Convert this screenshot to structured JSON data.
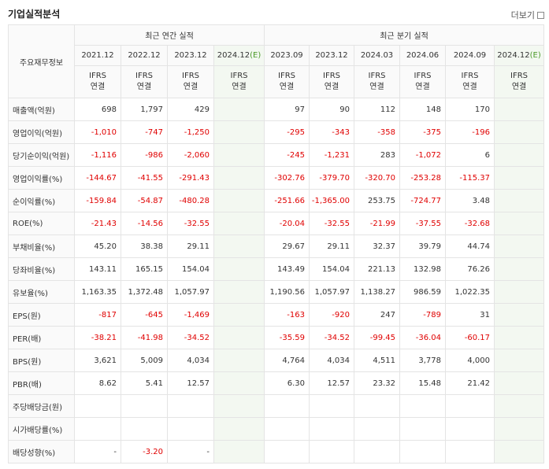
{
  "header": {
    "title": "기업실적분석",
    "more_label": "더보기"
  },
  "table": {
    "corner_label": "주요재무정보",
    "group_annual": "최근 연간 실적",
    "group_quarter": "최근 분기 실적",
    "periods": [
      "2021.12",
      "2022.12",
      "2023.12",
      "2024.12",
      "2023.09",
      "2023.12",
      "2024.03",
      "2024.06",
      "2024.09",
      "2024.12"
    ],
    "estimate_marker": "(E)",
    "ifrs_line1": "IFRS",
    "ifrs_line2": "연결",
    "rows": [
      {
        "label": "매출액(억원)",
        "values": [
          "698",
          "1,797",
          "429",
          "",
          "97",
          "90",
          "112",
          "148",
          "170",
          ""
        ]
      },
      {
        "label": "영업이익(억원)",
        "values": [
          "-1,010",
          "-747",
          "-1,250",
          "",
          "-295",
          "-343",
          "-358",
          "-375",
          "-196",
          ""
        ]
      },
      {
        "label": "당기순이익(억원)",
        "values": [
          "-1,116",
          "-986",
          "-2,060",
          "",
          "-245",
          "-1,231",
          "283",
          "-1,072",
          "6",
          ""
        ]
      },
      {
        "label": "영업이익률(%)",
        "values": [
          "-144.67",
          "-41.55",
          "-291.43",
          "",
          "-302.76",
          "-379.70",
          "-320.70",
          "-253.28",
          "-115.37",
          ""
        ]
      },
      {
        "label": "순이익률(%)",
        "values": [
          "-159.84",
          "-54.87",
          "-480.28",
          "",
          "-251.66",
          "-1,365.00",
          "253.75",
          "-724.77",
          "3.48",
          ""
        ]
      },
      {
        "label": "ROE(%)",
        "values": [
          "-21.43",
          "-14.56",
          "-32.55",
          "",
          "-20.04",
          "-32.55",
          "-21.99",
          "-37.55",
          "-32.68",
          ""
        ]
      },
      {
        "label": "부채비율(%)",
        "values": [
          "45.20",
          "38.38",
          "29.11",
          "",
          "29.67",
          "29.11",
          "32.37",
          "39.79",
          "44.74",
          ""
        ]
      },
      {
        "label": "당좌비율(%)",
        "values": [
          "143.11",
          "165.15",
          "154.04",
          "",
          "143.49",
          "154.04",
          "221.13",
          "132.98",
          "76.26",
          ""
        ]
      },
      {
        "label": "유보율(%)",
        "values": [
          "1,163.35",
          "1,372.48",
          "1,057.97",
          "",
          "1,190.56",
          "1,057.97",
          "1,138.27",
          "986.59",
          "1,022.35",
          ""
        ]
      },
      {
        "label": "EPS(원)",
        "values": [
          "-817",
          "-645",
          "-1,469",
          "",
          "-163",
          "-920",
          "247",
          "-789",
          "31",
          ""
        ]
      },
      {
        "label": "PER(배)",
        "values": [
          "-38.21",
          "-41.98",
          "-34.52",
          "",
          "-35.59",
          "-34.52",
          "-99.45",
          "-36.04",
          "-60.17",
          ""
        ]
      },
      {
        "label": "BPS(원)",
        "values": [
          "3,621",
          "5,009",
          "4,034",
          "",
          "4,764",
          "4,034",
          "4,511",
          "3,778",
          "4,000",
          ""
        ]
      },
      {
        "label": "PBR(배)",
        "values": [
          "8.62",
          "5.41",
          "12.57",
          "",
          "6.30",
          "12.57",
          "23.32",
          "15.48",
          "21.42",
          ""
        ]
      },
      {
        "label": "주당배당금(원)",
        "values": [
          "",
          "",
          "",
          "",
          "",
          "",
          "",
          "",
          "",
          ""
        ]
      },
      {
        "label": "시가배당률(%)",
        "values": [
          "",
          "",
          "",
          "",
          "",
          "",
          "",
          "",
          "",
          ""
        ]
      },
      {
        "label": "배당성향(%)",
        "values": [
          "-",
          "-3.20",
          "-",
          "",
          "",
          "",
          "",
          "",
          "",
          ""
        ]
      }
    ]
  }
}
